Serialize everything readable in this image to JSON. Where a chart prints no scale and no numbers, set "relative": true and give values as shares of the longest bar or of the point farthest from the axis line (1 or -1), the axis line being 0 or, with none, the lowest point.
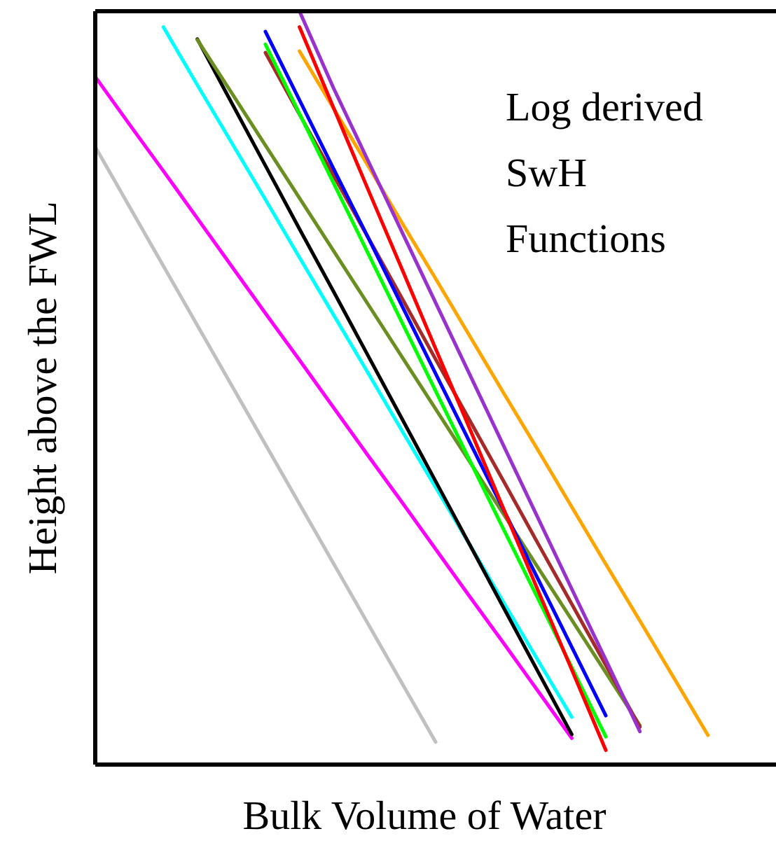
{
  "chart_data": {
    "type": "line",
    "relative": true,
    "xlabel": "Bulk Volume of Water",
    "ylabel": "Height above the FWL",
    "annotations": [
      "Log derived\nSwH\nFunctions"
    ],
    "line_style": "solid",
    "categories": [
      null,
      null,
      null,
      null,
      null,
      null,
      null,
      null,
      null,
      null,
      null,
      null,
      null,
      null,
      null,
      null,
      null,
      null,
      null,
      null,
      null
    ],
    "series": [
      {
        "color": "#c0c0c0",
        "values": [
          0.82,
          0.741,
          0.662,
          0.583,
          0.504,
          0.425,
          0.346,
          0.267,
          0.188,
          0.109,
          0.03,
          null,
          null,
          null,
          null,
          null,
          null,
          null,
          null,
          null,
          null
        ]
      },
      {
        "color": "#ff00ff",
        "values": [
          0.913,
          0.85,
          0.788,
          0.725,
          0.662,
          0.599,
          0.537,
          0.474,
          0.411,
          0.349,
          0.286,
          0.223,
          0.161,
          0.098,
          0.035,
          null,
          null,
          null,
          null,
          null,
          null
        ]
      },
      {
        "color": "#00ffff",
        "values": [
          null,
          null,
          0.979,
          0.902,
          0.826,
          0.75,
          0.673,
          0.597,
          0.521,
          0.444,
          0.368,
          0.292,
          0.215,
          0.139,
          0.063,
          null,
          null,
          null,
          null,
          null,
          null
        ]
      },
      {
        "color": "#000000",
        "values": [
          null,
          null,
          null,
          0.963,
          0.879,
          0.795,
          0.711,
          0.628,
          0.544,
          0.46,
          0.376,
          0.292,
          0.208,
          0.124,
          0.04,
          null,
          null,
          null,
          null,
          null,
          null
        ]
      },
      {
        "color": "#6b8e23",
        "values": [
          null,
          null,
          null,
          0.962,
          0.892,
          0.822,
          0.752,
          0.682,
          0.612,
          0.542,
          0.472,
          0.402,
          0.332,
          0.262,
          0.192,
          0.122,
          0.052,
          null,
          null,
          null,
          null
        ]
      },
      {
        "color": "#a52a2a",
        "values": [
          null,
          null,
          null,
          null,
          null,
          0.945,
          0.863,
          0.782,
          0.701,
          0.62,
          0.538,
          0.457,
          0.376,
          0.294,
          0.213,
          0.132,
          0.05,
          null,
          null,
          null,
          null
        ]
      },
      {
        "color": "#00ff00",
        "values": [
          null,
          null,
          null,
          null,
          null,
          0.956,
          0.864,
          0.772,
          0.68,
          0.588,
          0.496,
          0.404,
          0.312,
          0.221,
          0.129,
          0.037,
          null,
          null,
          null,
          null,
          null
        ]
      },
      {
        "color": "#0000ff",
        "values": [
          null,
          null,
          null,
          null,
          null,
          0.973,
          0.882,
          0.791,
          0.701,
          0.61,
          0.519,
          0.428,
          0.338,
          0.247,
          0.156,
          0.065,
          null,
          null,
          null,
          null,
          null
        ]
      },
      {
        "color": "#ffa500",
        "values": [
          null,
          null,
          null,
          null,
          null,
          null,
          0.947,
          0.871,
          0.796,
          0.72,
          0.645,
          0.569,
          0.493,
          0.418,
          0.342,
          0.266,
          0.191,
          0.115,
          0.039,
          null,
          null
        ]
      },
      {
        "color": "#ff0000",
        "values": [
          null,
          null,
          null,
          null,
          null,
          null,
          0.979,
          0.872,
          0.765,
          0.659,
          0.552,
          0.446,
          0.339,
          0.232,
          0.126,
          0.019,
          null,
          null,
          null,
          null,
          null
        ]
      },
      {
        "color": "#9932cc",
        "values": [
          null,
          null,
          null,
          null,
          null,
          null,
          1,
          0.898,
          0.803,
          0.708,
          0.613,
          0.518,
          0.423,
          0.328,
          0.233,
          0.139,
          0.044,
          null,
          null,
          null,
          null
        ]
      }
    ]
  }
}
